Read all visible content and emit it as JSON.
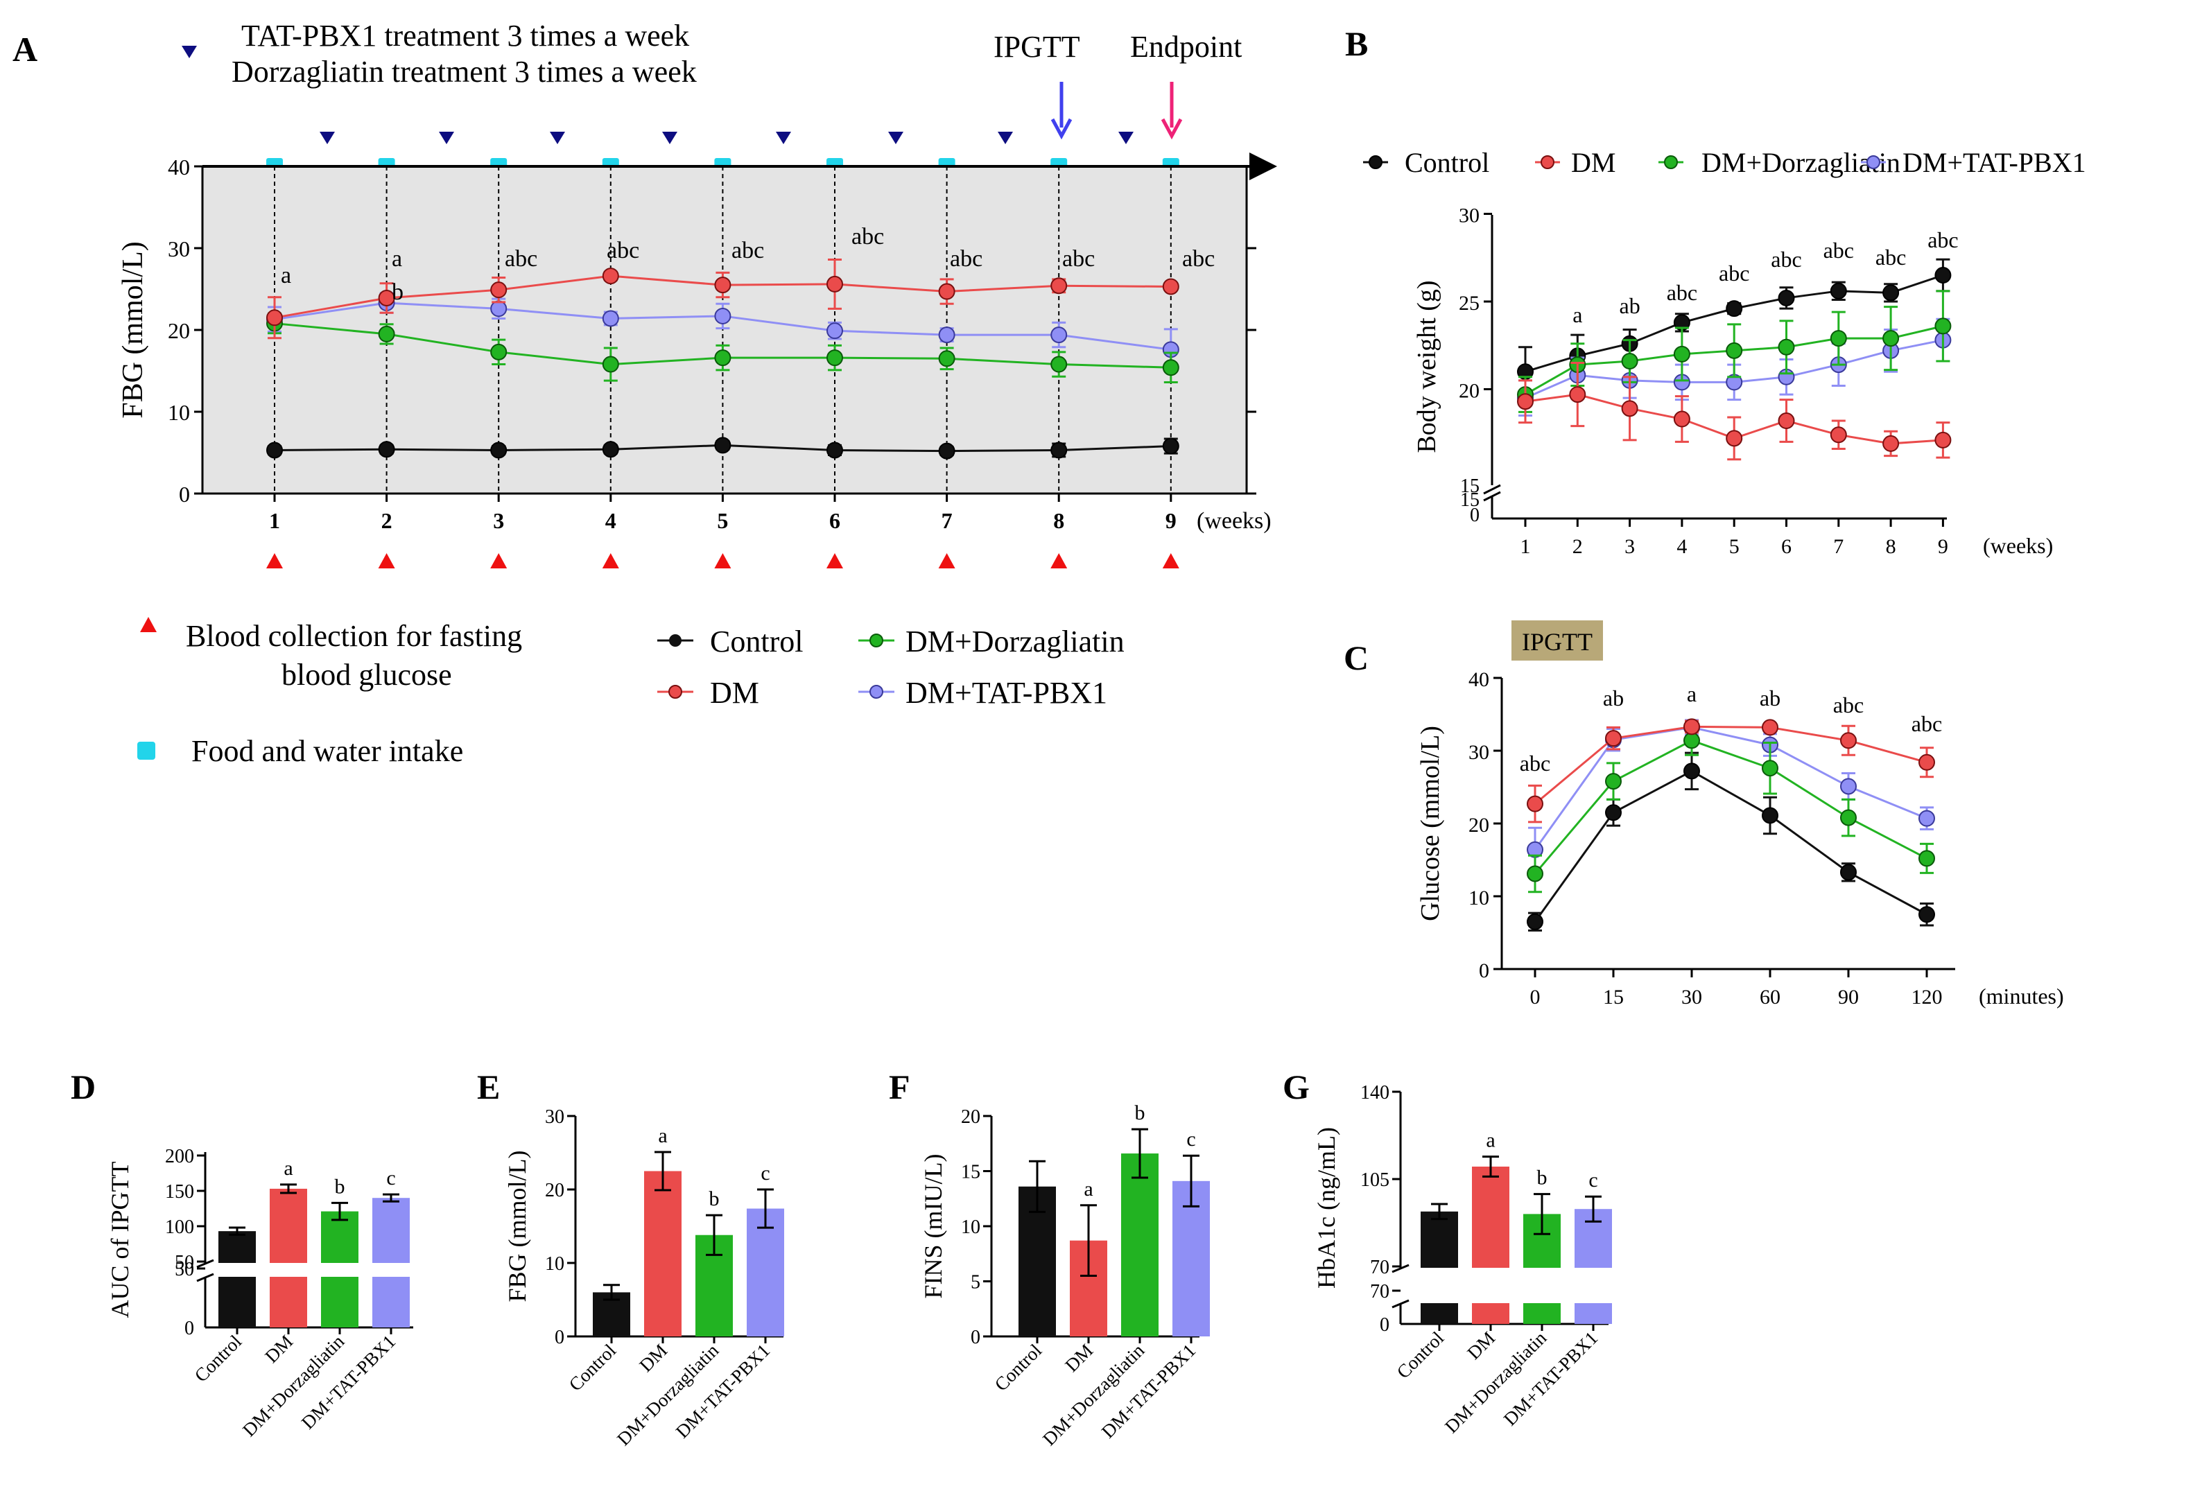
{
  "colors": {
    "control": "#111111",
    "dm": "#ea4b4b",
    "dorz": "#22b322",
    "tat": "#8f8ff5",
    "shade": "#e4e4e4",
    "blueTri": "#0d0d80",
    "redTri": "#ee1111",
    "cyan": "#22d4ea",
    "ipgttArrow": "#4040ee",
    "endArrow": "#ee2277",
    "ipgttBox": "#b8a878"
  },
  "panelA": {
    "letter": "A",
    "treat1": "TAT-PBX1 treatment 3 times a week",
    "treat2": "Dorzagliatin treatment 3 times a week",
    "ipgtt": "IPGTT",
    "endpoint": "Endpoint",
    "blood1": "Blood collection for fasting",
    "blood2": "blood glucose",
    "food": "Food and water intake",
    "legend": {
      "control": "Control",
      "dm": "DM",
      "dorz": "DM+Dorzagliatin",
      "tat": "DM+TAT-PBX1"
    }
  },
  "panelB": {
    "letter": "B"
  },
  "panelC": {
    "letter": "C",
    "tag": "IPGTT"
  },
  "panelD": {
    "letter": "D"
  },
  "panelE": {
    "letter": "E"
  },
  "panelF": {
    "letter": "F"
  },
  "panelG": {
    "letter": "G"
  },
  "chart_data": [
    {
      "id": "A",
      "type": "line",
      "ylabel": "FBG (mmol/L)",
      "xlabel": "(weeks)",
      "x": [
        1,
        2,
        3,
        4,
        5,
        6,
        7,
        8,
        9
      ],
      "ylim": [
        0,
        40
      ],
      "yticks": [
        "0",
        "10",
        "20",
        "30",
        "40"
      ],
      "series": [
        {
          "name": "Control",
          "key": "control",
          "values": [
            5.3,
            5.4,
            5.3,
            5.4,
            5.9,
            5.3,
            5.2,
            5.3,
            5.8
          ],
          "err": [
            0.5,
            0.5,
            0.5,
            0.5,
            0.5,
            0.6,
            0.5,
            0.8,
            0.9
          ]
        },
        {
          "name": "DM",
          "key": "dm",
          "values": [
            21.5,
            23.9,
            24.9,
            26.6,
            25.5,
            25.6,
            24.7,
            25.4,
            25.3
          ],
          "err": [
            2.5,
            1.8,
            1.5,
            0.5,
            1.5,
            3.0,
            1.5,
            0.8,
            0.4
          ]
        },
        {
          "name": "DM+Dorzagliatin",
          "key": "dorz",
          "values": [
            20.8,
            19.5,
            17.3,
            15.8,
            16.6,
            16.6,
            16.5,
            15.8,
            15.4
          ],
          "err": [
            1.2,
            1.2,
            1.5,
            2.0,
            1.5,
            1.5,
            1.3,
            1.5,
            1.8
          ]
        },
        {
          "name": "DM+TAT-PBX1",
          "key": "tat",
          "values": [
            21.3,
            23.3,
            22.6,
            21.4,
            21.7,
            19.9,
            19.4,
            19.4,
            17.6
          ],
          "err": [
            1.5,
            1.2,
            1.2,
            0.8,
            1.5,
            1.0,
            0.8,
            1.5,
            2.5
          ]
        }
      ],
      "annotations": [
        "a",
        "a",
        "abc",
        "abc",
        "abc",
        "abc",
        "abc",
        "abc",
        "abc"
      ],
      "annot2": "b"
    },
    {
      "id": "B",
      "type": "line",
      "ylabel": "Body weight (g)",
      "xlabel": "(weeks)",
      "x": [
        1,
        2,
        3,
        4,
        5,
        6,
        7,
        8,
        9
      ],
      "ylim": [
        15,
        30
      ],
      "yticks": [
        "20",
        "25",
        "30"
      ],
      "ybreakTicks": [
        "15",
        "15",
        "0"
      ],
      "series": [
        {
          "name": "Control",
          "key": "control",
          "values": [
            21.0,
            21.9,
            22.6,
            23.8,
            24.6,
            25.2,
            25.6,
            25.5,
            26.5
          ],
          "err": [
            1.4,
            1.2,
            0.8,
            0.5,
            0.3,
            0.6,
            0.5,
            0.5,
            0.9
          ]
        },
        {
          "name": "DM",
          "key": "dm",
          "values": [
            19.3,
            19.7,
            18.9,
            18.3,
            17.2,
            18.2,
            17.4,
            16.9,
            17.1
          ],
          "err": [
            1.2,
            1.8,
            1.8,
            1.3,
            1.2,
            1.2,
            0.8,
            0.7,
            1.0
          ]
        },
        {
          "name": "DM+Dorzagliatin",
          "key": "dorz",
          "values": [
            19.7,
            21.4,
            21.6,
            22.0,
            22.2,
            22.4,
            22.9,
            22.9,
            23.6
          ],
          "err": [
            1.0,
            1.2,
            1.2,
            1.5,
            1.5,
            1.5,
            1.5,
            1.8,
            2.0
          ]
        },
        {
          "name": "DM+TAT-PBX1",
          "key": "tat",
          "values": [
            19.5,
            20.8,
            20.5,
            20.4,
            20.4,
            20.7,
            21.4,
            22.2,
            22.8
          ],
          "err": [
            1.0,
            1.0,
            1.0,
            1.0,
            1.0,
            1.0,
            1.2,
            1.2,
            1.2
          ]
        }
      ],
      "annotations": [
        "",
        "a",
        "ab",
        "abc",
        "abc",
        "abc",
        "abc",
        "abc",
        "abc"
      ],
      "legend": [
        "Control",
        "DM",
        "DM+Dorzagliatin",
        "DM+TAT-PBX1"
      ]
    },
    {
      "id": "C",
      "type": "line",
      "ylabel": "Glucose (mmol/L)",
      "xlabel": "(minutes)",
      "x": [
        "0",
        "15",
        "30",
        "60",
        "90",
        "120"
      ],
      "ylim": [
        0,
        40
      ],
      "yticks": [
        "0",
        "10",
        "20",
        "30",
        "40"
      ],
      "series": [
        {
          "name": "Control",
          "key": "control",
          "values": [
            6.5,
            21.5,
            27.2,
            21.1,
            13.3,
            7.5
          ],
          "err": [
            1.2,
            1.8,
            2.5,
            2.5,
            1.2,
            1.5
          ]
        },
        {
          "name": "DM",
          "key": "dm",
          "values": [
            22.7,
            31.7,
            33.3,
            33.2,
            31.4,
            28.4
          ],
          "err": [
            2.5,
            1.5,
            0.8,
            0.5,
            2.0,
            2.0
          ]
        },
        {
          "name": "DM+Dorzagliatin",
          "key": "dorz",
          "values": [
            13.1,
            25.8,
            31.4,
            27.6,
            20.8,
            15.2
          ],
          "err": [
            2.5,
            2.5,
            2.0,
            3.5,
            2.5,
            2.0
          ]
        },
        {
          "name": "DM+TAT-PBX1",
          "key": "tat",
          "values": [
            16.4,
            31.5,
            33.2,
            30.8,
            25.1,
            20.7
          ],
          "err": [
            3.0,
            1.5,
            1.0,
            1.5,
            1.8,
            1.5
          ]
        }
      ],
      "annotations": [
        "abc",
        "ab",
        "a",
        "ab",
        "abc",
        "abc"
      ]
    },
    {
      "id": "D",
      "type": "bar",
      "ylabel": "AUC of IPGTT",
      "categories": [
        "Control",
        "DM",
        "DM+Dorzagliatin",
        "DM+TAT-PBX1"
      ],
      "values": [
        93,
        153,
        121,
        140
      ],
      "err": [
        5,
        6,
        12,
        5
      ],
      "yticks": [
        "50",
        "100",
        "150",
        "200"
      ],
      "ybreakTicks": [
        "50",
        "0"
      ],
      "ylim": [
        50,
        200
      ],
      "annotations": [
        "",
        "a",
        "b",
        "c"
      ]
    },
    {
      "id": "E",
      "type": "bar",
      "ylabel": "FBG (mmol/L)",
      "categories": [
        "Control",
        "DM",
        "DM+Dorzagliatin",
        "DM+TAT-PBX1"
      ],
      "values": [
        6.0,
        22.5,
        13.8,
        17.4
      ],
      "err": [
        1.0,
        2.6,
        2.7,
        2.6
      ],
      "yticks": [
        "0",
        "10",
        "20",
        "30"
      ],
      "ylim": [
        0,
        30
      ],
      "annotations": [
        "",
        "a",
        "b",
        "c"
      ]
    },
    {
      "id": "F",
      "type": "bar",
      "ylabel": "FINS (mIU/L)",
      "categories": [
        "Control",
        "DM",
        "DM+Dorzagliatin",
        "DM+TAT-PBX1"
      ],
      "values": [
        13.6,
        8.7,
        16.6,
        14.1
      ],
      "err": [
        2.3,
        3.2,
        2.2,
        2.3
      ],
      "yticks": [
        "0",
        "5",
        "10",
        "15",
        "20"
      ],
      "ylim": [
        0,
        20
      ],
      "annotations": [
        "",
        "a",
        "b",
        "c"
      ]
    },
    {
      "id": "G",
      "type": "bar",
      "ylabel": "HbA1c (ng/mL)",
      "categories": [
        "Control",
        "DM",
        "DM+Dorzagliatin",
        "DM+TAT-PBX1"
      ],
      "values": [
        92,
        110,
        91,
        93
      ],
      "err": [
        3,
        4,
        8,
        5
      ],
      "yticks": [
        "70",
        "105",
        "140"
      ],
      "ybreakTicks": [
        "70",
        "0"
      ],
      "ylim": [
        70,
        140
      ],
      "annotations": [
        "",
        "a",
        "b",
        "c"
      ]
    }
  ]
}
